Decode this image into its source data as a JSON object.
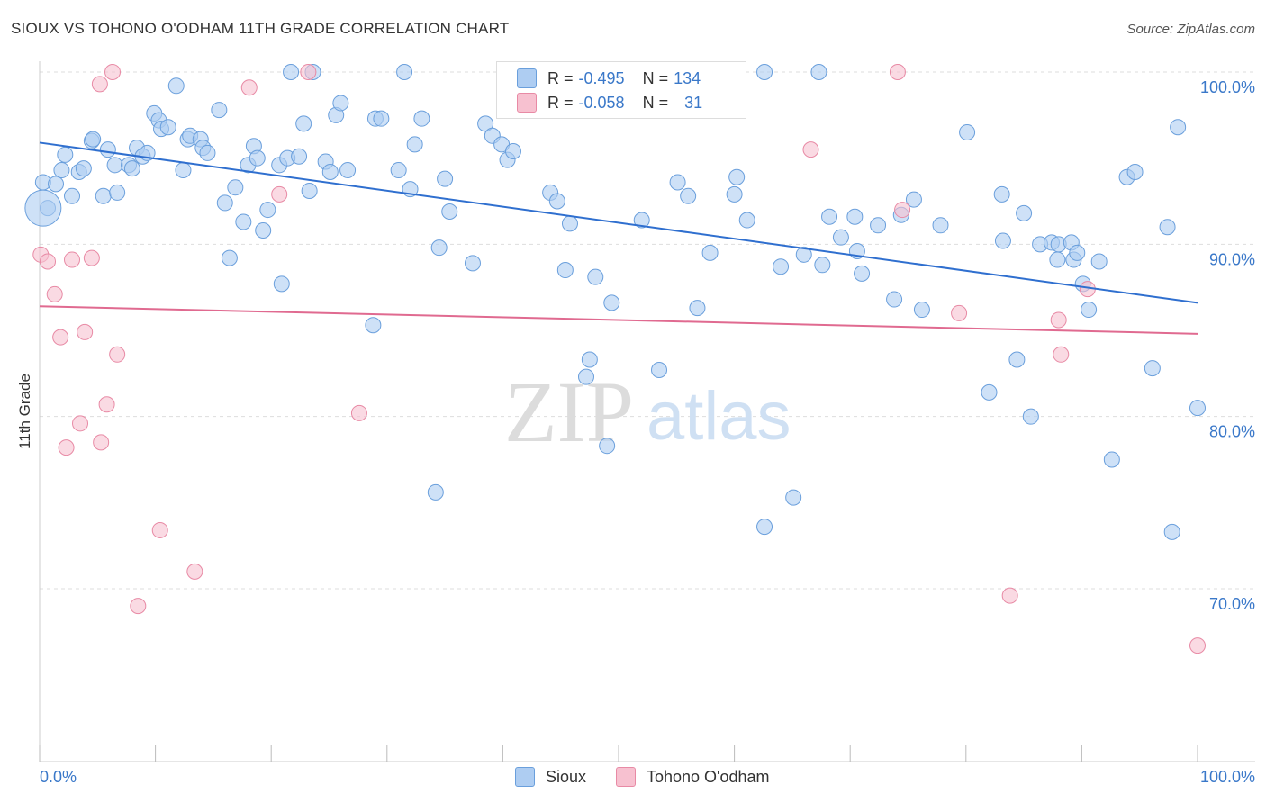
{
  "header": {
    "title": "SIOUX VS TOHONO O'ODHAM 11TH GRADE CORRELATION CHART",
    "source": "Source: ZipAtlas.com"
  },
  "watermark": {
    "zip": "ZIP",
    "atlas": "atlas"
  },
  "stats": {
    "sioux": {
      "r_label": "R =",
      "r_value": "-0.495",
      "n_label": "N =",
      "n_value": "134"
    },
    "tohono": {
      "r_label": "R =",
      "r_value": "-0.058",
      "n_label": "N =",
      "n_value": "31"
    }
  },
  "colors": {
    "sioux_fill": "#aecdf2",
    "sioux_stroke": "#6a9fdc",
    "sioux_line": "#2f6fcf",
    "tohono_fill": "#f7c1d0",
    "tohono_stroke": "#e88aa5",
    "tohono_line": "#e06a90",
    "tick_label": "#3a78c9",
    "grid": "#dddddd"
  },
  "chart_data": {
    "type": "scatter",
    "title": "SIOUX VS TOHONO O'ODHAM 11TH GRADE CORRELATION CHART",
    "xlabel": "",
    "ylabel": "11th Grade",
    "xlim": [
      0,
      100
    ],
    "ylim": [
      60,
      102
    ],
    "x_tick_labels": [
      "0.0%",
      "100.0%"
    ],
    "y_ticks": [
      70,
      80,
      90,
      100
    ],
    "y_tick_labels": [
      "70.0%",
      "80.0%",
      "90.0%",
      "100.0%"
    ],
    "legend": [
      "Sioux",
      "Tohono O'odham"
    ],
    "series": [
      {
        "name": "Sioux",
        "trend": {
          "x": [
            0,
            100
          ],
          "y": [
            95.9,
            86.6
          ]
        },
        "points": [
          [
            0.3,
            93.6
          ],
          [
            0.7,
            92.1
          ],
          [
            1.4,
            93.5
          ],
          [
            1.9,
            94.3
          ],
          [
            2.2,
            95.2
          ],
          [
            2.8,
            92.8
          ],
          [
            3.4,
            94.2
          ],
          [
            3.8,
            94.4
          ],
          [
            4.5,
            96.0
          ],
          [
            4.6,
            96.1
          ],
          [
            5.5,
            92.8
          ],
          [
            5.9,
            95.5
          ],
          [
            6.5,
            94.6
          ],
          [
            6.7,
            93.0
          ],
          [
            7.7,
            94.6
          ],
          [
            8.0,
            94.4
          ],
          [
            8.4,
            95.6
          ],
          [
            8.9,
            95.1
          ],
          [
            9.3,
            95.3
          ],
          [
            9.9,
            97.6
          ],
          [
            10.3,
            97.2
          ],
          [
            10.5,
            96.7
          ],
          [
            11.1,
            96.8
          ],
          [
            11.8,
            99.2
          ],
          [
            12.4,
            94.3
          ],
          [
            12.8,
            96.1
          ],
          [
            13.0,
            96.3
          ],
          [
            13.9,
            96.1
          ],
          [
            14.1,
            95.6
          ],
          [
            14.5,
            95.3
          ],
          [
            15.5,
            97.8
          ],
          [
            16.0,
            92.4
          ],
          [
            16.4,
            89.2
          ],
          [
            16.9,
            93.3
          ],
          [
            17.6,
            91.3
          ],
          [
            18.0,
            94.6
          ],
          [
            18.5,
            95.7
          ],
          [
            18.8,
            95.0
          ],
          [
            19.3,
            90.8
          ],
          [
            19.7,
            92.0
          ],
          [
            20.7,
            94.6
          ],
          [
            20.9,
            87.7
          ],
          [
            21.4,
            95.0
          ],
          [
            21.7,
            100.0
          ],
          [
            22.4,
            95.1
          ],
          [
            22.8,
            97.0
          ],
          [
            23.3,
            93.1
          ],
          [
            23.6,
            100.0
          ],
          [
            24.7,
            94.8
          ],
          [
            25.1,
            94.2
          ],
          [
            25.6,
            97.5
          ],
          [
            26.0,
            98.2
          ],
          [
            26.6,
            94.3
          ],
          [
            28.8,
            85.3
          ],
          [
            29.0,
            97.3
          ],
          [
            29.5,
            97.3
          ],
          [
            31.0,
            94.3
          ],
          [
            31.5,
            100.0
          ],
          [
            32.0,
            93.2
          ],
          [
            32.4,
            95.8
          ],
          [
            33.0,
            97.3
          ],
          [
            34.2,
            75.6
          ],
          [
            34.5,
            89.8
          ],
          [
            35.0,
            93.8
          ],
          [
            35.4,
            91.9
          ],
          [
            37.4,
            88.9
          ],
          [
            38.5,
            97.0
          ],
          [
            39.1,
            96.3
          ],
          [
            39.9,
            95.8
          ],
          [
            40.4,
            94.9
          ],
          [
            40.9,
            95.4
          ],
          [
            41.5,
            100.0
          ],
          [
            44.1,
            93.0
          ],
          [
            44.7,
            92.5
          ],
          [
            45.3,
            100.0
          ],
          [
            45.4,
            88.5
          ],
          [
            45.8,
            91.2
          ],
          [
            47.2,
            82.3
          ],
          [
            47.5,
            83.3
          ],
          [
            48.0,
            88.1
          ],
          [
            49.0,
            78.3
          ],
          [
            49.4,
            86.6
          ],
          [
            52.0,
            91.4
          ],
          [
            53.5,
            82.7
          ],
          [
            55.1,
            93.6
          ],
          [
            56.0,
            92.8
          ],
          [
            56.8,
            86.3
          ],
          [
            57.1,
            98.8
          ],
          [
            57.4,
            100.0
          ],
          [
            57.4,
            99.0
          ],
          [
            57.9,
            89.5
          ],
          [
            60.0,
            92.9
          ],
          [
            60.2,
            93.9
          ],
          [
            61.1,
            91.4
          ],
          [
            62.6,
            100.0
          ],
          [
            62.6,
            73.6
          ],
          [
            64.0,
            88.7
          ],
          [
            65.1,
            75.3
          ],
          [
            66.0,
            89.4
          ],
          [
            67.3,
            100.0
          ],
          [
            67.6,
            88.8
          ],
          [
            68.2,
            91.6
          ],
          [
            69.2,
            90.4
          ],
          [
            70.4,
            91.6
          ],
          [
            70.6,
            89.6
          ],
          [
            71.0,
            88.3
          ],
          [
            72.4,
            91.1
          ],
          [
            73.8,
            86.8
          ],
          [
            74.4,
            91.7
          ],
          [
            75.5,
            92.6
          ],
          [
            76.2,
            86.2
          ],
          [
            77.8,
            91.1
          ],
          [
            80.1,
            96.5
          ],
          [
            82.0,
            81.4
          ],
          [
            83.1,
            92.9
          ],
          [
            83.2,
            90.2
          ],
          [
            84.4,
            83.3
          ],
          [
            85.0,
            91.8
          ],
          [
            85.6,
            80.0
          ],
          [
            86.4,
            90.0
          ],
          [
            87.4,
            90.1
          ],
          [
            87.9,
            89.1
          ],
          [
            88.0,
            90.0
          ],
          [
            89.1,
            90.1
          ],
          [
            89.3,
            89.1
          ],
          [
            89.6,
            89.5
          ],
          [
            90.1,
            87.7
          ],
          [
            90.6,
            86.2
          ],
          [
            91.5,
            89.0
          ],
          [
            92.6,
            77.5
          ],
          [
            93.9,
            93.9
          ],
          [
            94.6,
            94.2
          ],
          [
            96.1,
            82.8
          ],
          [
            97.4,
            91.0
          ],
          [
            97.8,
            73.3
          ],
          [
            98.3,
            96.8
          ],
          [
            100.0,
            80.5
          ]
        ]
      },
      {
        "name": "Tohono O'odham",
        "trend": {
          "x": [
            0,
            100
          ],
          "y": [
            86.4,
            84.8
          ]
        },
        "points": [
          [
            0.1,
            89.4
          ],
          [
            0.7,
            89.0
          ],
          [
            1.3,
            87.1
          ],
          [
            1.8,
            84.6
          ],
          [
            2.3,
            78.2
          ],
          [
            2.8,
            89.1
          ],
          [
            3.5,
            79.6
          ],
          [
            3.9,
            84.9
          ],
          [
            4.5,
            89.2
          ],
          [
            5.2,
            99.3
          ],
          [
            5.3,
            78.5
          ],
          [
            5.8,
            80.7
          ],
          [
            6.3,
            100.0
          ],
          [
            6.7,
            83.6
          ],
          [
            8.5,
            69.0
          ],
          [
            10.4,
            73.4
          ],
          [
            13.4,
            71.0
          ],
          [
            18.1,
            99.1
          ],
          [
            20.7,
            92.9
          ],
          [
            23.2,
            100.0
          ],
          [
            27.6,
            80.2
          ],
          [
            47.0,
            100.0
          ],
          [
            66.6,
            95.5
          ],
          [
            74.1,
            100.0
          ],
          [
            74.5,
            92.0
          ],
          [
            79.4,
            86.0
          ],
          [
            83.8,
            69.6
          ],
          [
            88.0,
            85.6
          ],
          [
            88.2,
            83.6
          ],
          [
            90.5,
            87.4
          ],
          [
            100.0,
            66.7
          ]
        ]
      }
    ]
  }
}
